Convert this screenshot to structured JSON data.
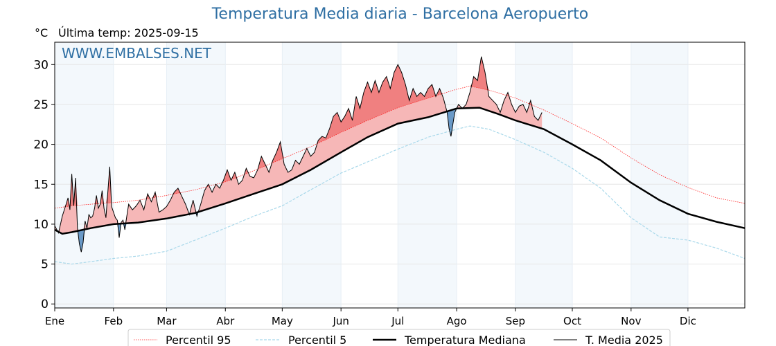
{
  "header": {
    "title": "Temperatura Media diaria - Barcelona Aeropuerto",
    "unit": "°C",
    "last_temp": "Última temp: 2025-09-15",
    "watermark": "WWW.EMBALSES.NET"
  },
  "colors": {
    "title": "#2f6fa3",
    "p95": "#ff2020",
    "p5": "#a8d8ea",
    "median": "#000000",
    "media2025": "#000000",
    "above_fill": "#f6b7b7",
    "above_strong": "#f08080",
    "below_fill": "#6a9ac8",
    "month_band": "#f3f8fc"
  },
  "chart_data": {
    "type": "line",
    "title": "Temperatura Media diaria - Barcelona Aeropuerto",
    "ylabel": "°C",
    "ylim": [
      -0.5,
      32.8
    ],
    "xlim": [
      1,
      365
    ],
    "y_ticks": [
      0,
      5,
      10,
      15,
      20,
      25,
      30
    ],
    "months": [
      "Ene",
      "Feb",
      "Mar",
      "Abr",
      "May",
      "Jun",
      "Jul",
      "Ago",
      "Sep",
      "Oct",
      "Nov",
      "Dic"
    ],
    "month_start_days": [
      1,
      32,
      60,
      91,
      121,
      152,
      182,
      213,
      244,
      274,
      305,
      335
    ],
    "grid": true,
    "legend_position": "bottom-center",
    "series": [
      {
        "name": "Percentil 95",
        "style": "dotted-red",
        "x": [
          1,
          10,
          20,
          32,
          45,
          60,
          75,
          91,
          106,
          121,
          136,
          152,
          166,
          182,
          198,
          213,
          220,
          230,
          244,
          259,
          274,
          289,
          305,
          320,
          335,
          350,
          365
        ],
        "y": [
          12.0,
          12.3,
          12.5,
          12.7,
          13.0,
          13.6,
          14.3,
          15.3,
          16.7,
          18.2,
          19.7,
          21.5,
          23.0,
          24.6,
          25.8,
          26.9,
          27.3,
          26.8,
          25.8,
          24.3,
          22.6,
          20.8,
          18.3,
          16.2,
          14.6,
          13.3,
          12.6
        ]
      },
      {
        "name": "Percentil 5",
        "style": "dashed-lightblue",
        "x": [
          1,
          10,
          20,
          32,
          45,
          60,
          75,
          91,
          106,
          121,
          136,
          152,
          166,
          182,
          198,
          213,
          220,
          230,
          244,
          259,
          274,
          289,
          305,
          320,
          335,
          350,
          365
        ],
        "y": [
          5.3,
          5.0,
          5.3,
          5.7,
          6.0,
          6.6,
          8.0,
          9.5,
          11.0,
          12.3,
          14.3,
          16.4,
          17.8,
          19.4,
          20.9,
          21.9,
          22.3,
          21.9,
          20.6,
          19.0,
          17.0,
          14.5,
          10.8,
          8.4,
          8.0,
          7.0,
          5.7
        ]
      },
      {
        "name": "Temperatura Mediana",
        "style": "thick-black",
        "x": [
          1,
          5,
          10,
          20,
          32,
          45,
          60,
          75,
          91,
          106,
          121,
          136,
          152,
          166,
          182,
          198,
          213,
          225,
          235,
          244,
          259,
          274,
          289,
          305,
          320,
          335,
          350,
          365
        ],
        "y": [
          9.3,
          8.8,
          9.0,
          9.5,
          10.0,
          10.2,
          10.7,
          11.4,
          12.6,
          13.8,
          15.0,
          16.8,
          19.0,
          20.9,
          22.6,
          23.4,
          24.5,
          24.6,
          23.8,
          23.0,
          21.9,
          20.0,
          18.0,
          15.2,
          13.0,
          11.3,
          10.3,
          9.5
        ]
      },
      {
        "name": "T. Media 2025",
        "style": "thin-black",
        "x": [
          1,
          3,
          5,
          7,
          8,
          9,
          10,
          11,
          12,
          13,
          14,
          15,
          16,
          17,
          18,
          19,
          20,
          21,
          22,
          23,
          24,
          25,
          26,
          27,
          28,
          29,
          30,
          31,
          32,
          33,
          34,
          35,
          36,
          37,
          38,
          39,
          40,
          42,
          44,
          46,
          48,
          50,
          52,
          54,
          56,
          58,
          60,
          62,
          64,
          66,
          68,
          70,
          72,
          74,
          76,
          78,
          80,
          82,
          84,
          86,
          88,
          90,
          92,
          94,
          96,
          98,
          100,
          102,
          104,
          106,
          108,
          110,
          112,
          114,
          116,
          118,
          120,
          122,
          124,
          126,
          128,
          130,
          132,
          134,
          136,
          138,
          140,
          142,
          144,
          146,
          148,
          150,
          152,
          154,
          156,
          158,
          160,
          162,
          164,
          166,
          168,
          170,
          172,
          174,
          176,
          178,
          180,
          182,
          184,
          186,
          188,
          190,
          192,
          194,
          196,
          198,
          200,
          202,
          204,
          206,
          208,
          209,
          210,
          211,
          212,
          214,
          216,
          218,
          220,
          222,
          224,
          226,
          228,
          230,
          232,
          234,
          236,
          238,
          240,
          242,
          244,
          246,
          248,
          250,
          252,
          254,
          256,
          258
        ],
        "y": [
          9.8,
          8.9,
          11.0,
          12.5,
          13.3,
          11.8,
          16.3,
          12.3,
          15.8,
          9.5,
          7.5,
          6.5,
          7.7,
          10.4,
          9.5,
          11.2,
          10.8,
          11.0,
          12.0,
          13.6,
          12.0,
          12.5,
          14.2,
          12.0,
          10.8,
          14.0,
          17.2,
          12.2,
          11.5,
          10.8,
          10.5,
          8.3,
          10.2,
          10.5,
          9.3,
          11.0,
          12.5,
          11.8,
          12.3,
          13.0,
          11.8,
          13.8,
          12.8,
          14.0,
          11.5,
          11.8,
          12.2,
          13.0,
          14.0,
          14.5,
          13.5,
          12.5,
          11.2,
          13.0,
          11.0,
          12.5,
          14.2,
          15.0,
          14.0,
          15.0,
          14.5,
          15.5,
          16.8,
          15.5,
          16.5,
          15.0,
          15.5,
          17.0,
          16.0,
          15.8,
          16.8,
          18.5,
          17.5,
          16.5,
          18.0,
          19.0,
          20.3,
          17.5,
          16.5,
          16.8,
          18.0,
          17.5,
          18.5,
          19.5,
          18.5,
          19.0,
          20.5,
          21.0,
          20.8,
          22.0,
          23.5,
          24.0,
          22.8,
          23.5,
          24.5,
          23.0,
          26.0,
          24.5,
          26.5,
          27.8,
          26.5,
          28.0,
          26.5,
          27.8,
          28.5,
          27.0,
          29.0,
          30.0,
          29.0,
          27.5,
          25.5,
          27.0,
          26.0,
          26.5,
          26.0,
          27.0,
          27.5,
          26.0,
          27.0,
          25.8,
          24.0,
          22.0,
          21.0,
          22.5,
          24.0,
          25.0,
          24.5,
          25.0,
          26.5,
          28.5,
          28.0,
          31.0,
          29.0,
          26.0,
          25.5,
          25.0,
          24.0,
          25.5,
          26.5,
          25.0,
          24.0,
          24.8,
          25.0,
          24.0,
          25.5,
          23.5,
          23.0,
          24.0
        ]
      }
    ]
  },
  "legend": [
    {
      "label": "Percentil 95",
      "key": "p95"
    },
    {
      "label": "Percentil 5",
      "key": "p5"
    },
    {
      "label": "Temperatura Mediana",
      "key": "median"
    },
    {
      "label": "T. Media 2025",
      "key": "media2025"
    }
  ]
}
